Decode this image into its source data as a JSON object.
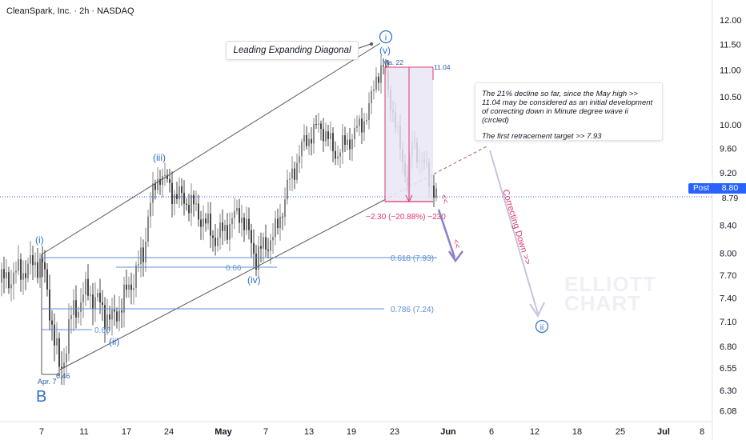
{
  "header": {
    "title": "CleanSpark, Inc. · 2h · NASDAQ"
  },
  "annotations": {
    "diagonal_label": "Leading Expanding Diagonal",
    "note_line1": "The 21% decline so far, since the May high >> 11.04 may be considered as an initial development of correcting down in Minute degree wave ii (circled)",
    "note_line2": "The first retracement target >> 7.93",
    "correcting": "Correcting Down >>",
    "wave_i_circle": "i",
    "wave_ii_circle": "ii",
    "wave_v": "(v)",
    "wave_iii": "(iii)",
    "wave_iv": "(iv)",
    "wave_i": "(i)",
    "wave_ii": "(ii)",
    "wave_B": "B",
    "may22_label": "Ma. 22",
    "high_label": "11.04",
    "apr7_label": "Apr. 7",
    "low_label": "6.46",
    "decline_label": "−2.30 (−20.88%)  −230",
    "fib_618": "0.618 (7.93)",
    "fib_786": "0.786 (7.24)",
    "fib_066_a": "0.66",
    "fib_066_b": "0.66",
    "chevrons1": "<<",
    "chevrons2": "<<",
    "watermark1": "ELLIOTT",
    "watermark2": "CHART"
  },
  "price_axis": {
    "post_label": "Post",
    "current_price": "8.80",
    "last_price": "8.79"
  },
  "chart_data": {
    "type": "candlestick",
    "title": "CleanSpark, Inc. · 2h · NASDAQ",
    "y_ticks": [
      "12.00",
      "11.50",
      "11.00",
      "10.50",
      "10.00",
      "9.60",
      "9.20",
      "8.80",
      "8.40",
      "8.00",
      "7.70",
      "7.40",
      "7.10",
      "6.80",
      "6.55",
      "6.30",
      "6.08"
    ],
    "x_ticks": [
      "7",
      "11",
      "17",
      "24",
      "May",
      "7",
      "13",
      "19",
      "23",
      "Jun",
      "6",
      "12",
      "18",
      "25",
      "Jul",
      "8"
    ],
    "ylim": [
      6.0,
      12.2
    ],
    "scale": "log",
    "key_levels": {
      "high": 11.04,
      "low": 6.46,
      "fib_618": 7.93,
      "fib_786": 7.24,
      "target": 7.93
    },
    "colors": {
      "up": "#888888",
      "down": "#444444",
      "fib": "#5b8fd4",
      "accent": "#e0356e",
      "wave": "#2f6ec9"
    }
  }
}
